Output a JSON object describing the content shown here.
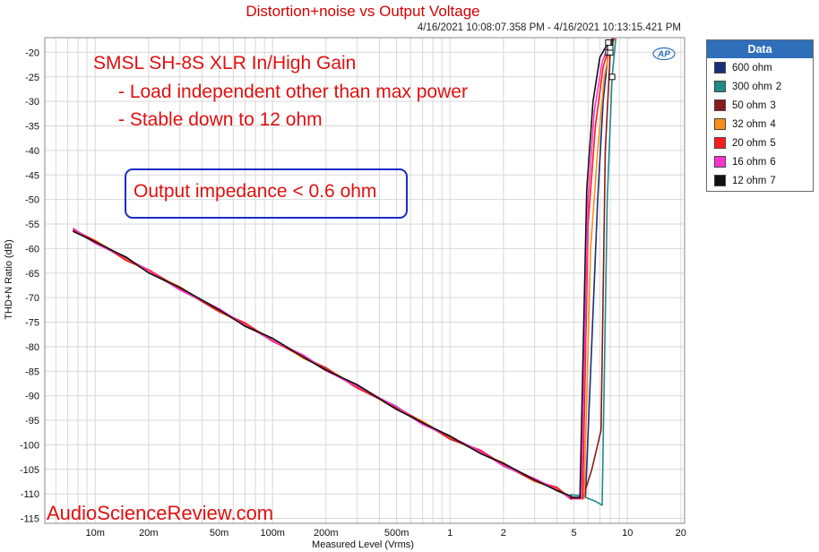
{
  "chart_data": {
    "type": "line",
    "title": "Distortion+noise vs Output Voltage",
    "subtitle": "4/16/2021 10:08:07.358 PM - 4/16/2021 10:13:15.421 PM",
    "xlabel": "Measured Level (Vrms)",
    "ylabel": "THD+N Ratio (dB)",
    "xscale": "log",
    "xlim": [
      0.0052,
      21
    ],
    "ylim": [
      -116,
      -17
    ],
    "xticks": [
      {
        "v": 0.01,
        "label": "10m"
      },
      {
        "v": 0.02,
        "label": "20m"
      },
      {
        "v": 0.05,
        "label": "50m"
      },
      {
        "v": 0.1,
        "label": "100m"
      },
      {
        "v": 0.2,
        "label": "200m"
      },
      {
        "v": 0.5,
        "label": "500m"
      },
      {
        "v": 1,
        "label": "1"
      },
      {
        "v": 2,
        "label": "2"
      },
      {
        "v": 5,
        "label": "5"
      },
      {
        "v": 10,
        "label": "10"
      },
      {
        "v": 20,
        "label": "20"
      }
    ],
    "yticks": [
      -20,
      -25,
      -30,
      -35,
      -40,
      -45,
      -50,
      -55,
      -60,
      -65,
      -70,
      -75,
      -80,
      -85,
      -90,
      -95,
      -100,
      -105,
      -110,
      -115
    ],
    "grid": true,
    "legend_position": "right",
    "legend_title": "Data",
    "base": {
      "x": [
        0.0075,
        0.01,
        0.015,
        0.02,
        0.03,
        0.05,
        0.07,
        0.1,
        0.15,
        0.2,
        0.3,
        0.5,
        0.7,
        1,
        1.5,
        2,
        3,
        4,
        4.8
      ],
      "y": [
        -56.2,
        -58.6,
        -62.1,
        -64.6,
        -68.1,
        -72.6,
        -75.5,
        -78.6,
        -82.1,
        -84.6,
        -88.1,
        -92.5,
        -95.5,
        -98.5,
        -101.5,
        -104.0,
        -107.2,
        -109.0,
        -110.8
      ]
    },
    "series": [
      {
        "name": "600 ohm",
        "index": "",
        "color": "#1a2f7a",
        "tail": [
          [
            4.8,
            -110.8
          ],
          [
            5.8,
            -110.6
          ],
          [
            6.8,
            -50
          ],
          [
            7.3,
            -30
          ],
          [
            7.8,
            -20
          ],
          [
            8.3,
            -17
          ]
        ]
      },
      {
        "name": "300 ohm",
        "index": "2",
        "color": "#1f8a8a",
        "tail": [
          [
            4.8,
            -110.2
          ],
          [
            5.5,
            -110.4
          ],
          [
            6.6,
            -111.5
          ],
          [
            7.2,
            -112.3
          ],
          [
            7.7,
            -50
          ],
          [
            8.2,
            -25
          ],
          [
            8.6,
            -17
          ]
        ]
      },
      {
        "name": "50 ohm",
        "index": "3",
        "color": "#8b1a1a",
        "tail": [
          [
            4.8,
            -110.6
          ],
          [
            5.6,
            -110.9
          ],
          [
            6.3,
            -105
          ],
          [
            7.1,
            -97
          ],
          [
            7.5,
            -40
          ],
          [
            8.0,
            -20
          ],
          [
            8.4,
            -17
          ]
        ]
      },
      {
        "name": "32 ohm",
        "index": "4",
        "color": "#ff8c1a",
        "tail": [
          [
            4.8,
            -110.9
          ],
          [
            5.7,
            -110.9
          ],
          [
            6.2,
            -60
          ],
          [
            6.8,
            -40
          ],
          [
            7.4,
            -25
          ],
          [
            8.0,
            -19
          ],
          [
            8.5,
            -17
          ]
        ]
      },
      {
        "name": "20 ohm",
        "index": "5",
        "color": "#ff1a1a",
        "tail": [
          [
            4.8,
            -111.0
          ],
          [
            5.6,
            -111.0
          ],
          [
            6.0,
            -55
          ],
          [
            6.6,
            -35
          ],
          [
            7.3,
            -23
          ],
          [
            8.0,
            -18
          ],
          [
            8.5,
            -17
          ]
        ]
      },
      {
        "name": "16 ohm",
        "index": "6",
        "color": "#ff33cc",
        "tail": [
          [
            4.8,
            -110.9
          ],
          [
            5.5,
            -110.9
          ],
          [
            6.0,
            -50
          ],
          [
            6.5,
            -32
          ],
          [
            7.2,
            -22
          ],
          [
            7.9,
            -18
          ],
          [
            8.4,
            -17
          ]
        ]
      },
      {
        "name": "12 ohm",
        "index": "7",
        "color": "#111111",
        "tail": [
          [
            4.8,
            -110.8
          ],
          [
            5.4,
            -110.8
          ],
          [
            5.9,
            -48
          ],
          [
            6.4,
            -30
          ],
          [
            7.0,
            -21
          ],
          [
            7.8,
            -18
          ],
          [
            8.3,
            -17
          ]
        ]
      }
    ]
  },
  "annotations": {
    "heading": "SMSL SH-8S XLR In/High Gain",
    "line1": "- Load independent other than max power",
    "line2": "- Stable down to 12 ohm",
    "boxed": "Output impedance < 0.6 ohm"
  },
  "watermark": "AudioScienceReview.com",
  "logo_text": "AP"
}
